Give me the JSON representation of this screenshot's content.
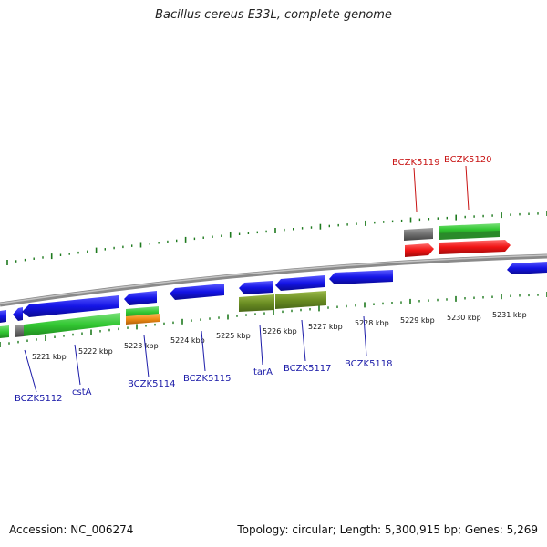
{
  "title": "Bacillus cereus E33L, complete genome",
  "footer": {
    "accession": "Accession: NC_006274",
    "topology": "Topology: circular; Length: 5,300,915 bp; Genes: 5,269"
  },
  "colors": {
    "blue_gene": "#1414e6",
    "green_gene": "#33c833",
    "olive_gene": "#6b8e23",
    "red_gene": "#f01414",
    "gray_gene": "#6e6e6e",
    "orange_gene": "#f08c14",
    "tick_green": "#1e7a1e",
    "label_blue": "#1a1aa8",
    "label_red": "#c81414"
  },
  "kbp_labels": [
    "5221 kbp",
    "5222 kbp",
    "5223 kbp",
    "5224 kbp",
    "5225 kbp",
    "5226 kbp",
    "5227 kbp",
    "5228 kbp",
    "5229 kbp",
    "5230 kbp",
    "5231 kbp"
  ],
  "gene_labels_bottom": [
    "BCZK5112",
    "cstA",
    "BCZK5114",
    "BCZK5115",
    "tarA",
    "BCZK5117",
    "BCZK5118"
  ],
  "gene_labels_top": [
    "BCZK5119",
    "BCZK5120"
  ]
}
